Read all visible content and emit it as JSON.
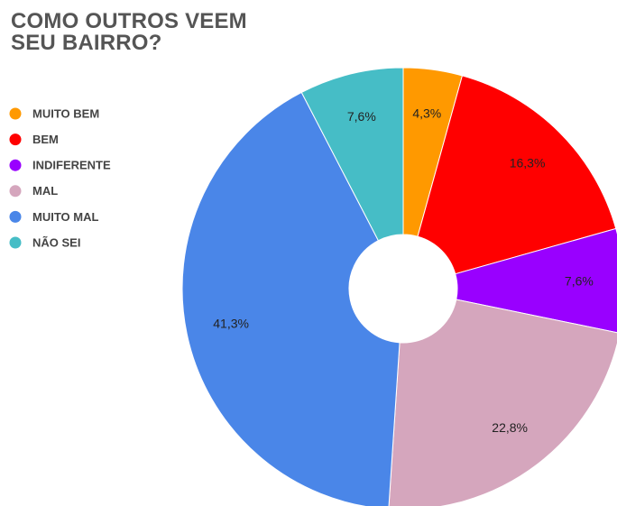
{
  "chart_data": {
    "type": "donut",
    "title": "COMO OUTROS VEEM SEU BAIRRO?",
    "categories": [
      "MUITO BEM",
      "BEM",
      "INDIFERENTE",
      "MAL",
      "MUITO MAL",
      "NÃO SEI"
    ],
    "values": [
      4.3,
      16.3,
      7.6,
      22.8,
      41.3,
      7.6
    ],
    "value_labels": [
      "4,3%",
      "16,3%",
      "7,6%",
      "22,8%",
      "41,3%",
      "7,6%"
    ],
    "colors": [
      "#ff9900",
      "#ff0000",
      "#9900ff",
      "#d5a6bd",
      "#4a86e8",
      "#46bdc6"
    ],
    "legend": "left"
  }
}
